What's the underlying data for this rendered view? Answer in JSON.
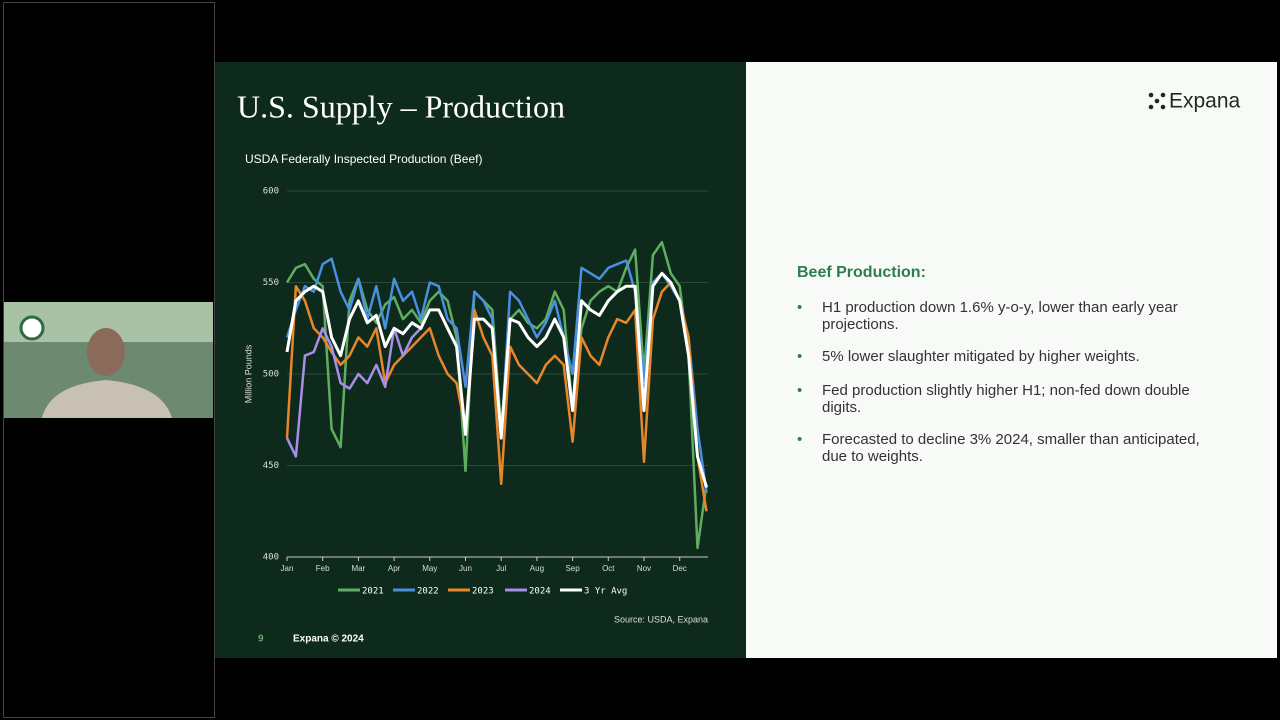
{
  "slide": {
    "title": "U.S. Supply – Production",
    "page_number": 9,
    "footer": "Expana © 2024",
    "logo": "Expana",
    "source": "Source: USDA, Expana"
  },
  "chart_data": {
    "type": "line",
    "title": "USDA Federally Inspected Production (Beef)",
    "y_label": "Million Pounds",
    "categories": [
      "Jan",
      null,
      null,
      null,
      "Feb",
      null,
      null,
      null,
      "Mar",
      null,
      null,
      null,
      "Apr",
      null,
      null,
      null,
      "May",
      null,
      null,
      null,
      "Jun",
      null,
      null,
      null,
      "Jul",
      null,
      null,
      null,
      "Aug",
      null,
      null,
      null,
      "Sep",
      null,
      null,
      null,
      "Oct",
      null,
      null,
      null,
      "Nov",
      null,
      null,
      null,
      "Dec",
      null,
      null,
      null
    ],
    "ylim": [
      400,
      600
    ],
    "yticks": [
      400,
      450,
      500,
      550,
      600
    ],
    "grid": true,
    "series": [
      {
        "name": "2021",
        "color": "#5fae5f",
        "values": [
          550,
          558,
          560,
          552,
          548,
          470,
          460,
          540,
          552,
          535,
          528,
          538,
          542,
          530,
          535,
          528,
          540,
          545,
          540,
          520,
          447,
          545,
          540,
          535,
          470,
          530,
          535,
          528,
          525,
          530,
          545,
          535,
          480,
          525,
          540,
          545,
          548,
          545,
          558,
          568,
          500,
          565,
          572,
          555,
          548,
          510,
          405,
          440
        ]
      },
      {
        "name": "2022",
        "color": "#4a8fe0",
        "values": [
          520,
          535,
          548,
          545,
          560,
          563,
          545,
          535,
          552,
          530,
          548,
          525,
          552,
          540,
          545,
          530,
          550,
          548,
          530,
          525,
          493,
          545,
          540,
          530,
          465,
          545,
          540,
          530,
          520,
          528,
          540,
          520,
          500,
          558,
          555,
          552,
          558,
          560,
          562,
          545,
          495,
          550,
          555,
          548,
          540,
          520,
          470,
          435
        ]
      },
      {
        "name": "2023",
        "color": "#e8872a",
        "values": [
          465,
          548,
          540,
          525,
          520,
          512,
          505,
          510,
          520,
          515,
          525,
          495,
          505,
          510,
          515,
          520,
          525,
          510,
          500,
          495,
          470,
          535,
          520,
          510,
          440,
          515,
          505,
          500,
          495,
          505,
          510,
          505,
          463,
          520,
          510,
          505,
          520,
          530,
          528,
          535,
          452,
          530,
          545,
          550,
          540,
          520,
          455,
          425
        ]
      },
      {
        "name": "2024",
        "color": "#a98ee8",
        "values": [
          465,
          455,
          510,
          512,
          525,
          515,
          495,
          492,
          500,
          495,
          505,
          493,
          525,
          510,
          520,
          525,
          null,
          null,
          null,
          null,
          null,
          null,
          null,
          null,
          null,
          null,
          null,
          null,
          null,
          null,
          null,
          null,
          null,
          null,
          null,
          null,
          null,
          null,
          null,
          null,
          null,
          null,
          null,
          null,
          null,
          null,
          null,
          null
        ]
      },
      {
        "name": "3 Yr Avg",
        "color": "#ffffff",
        "values": [
          512,
          540,
          545,
          548,
          545,
          520,
          510,
          530,
          540,
          528,
          532,
          515,
          525,
          522,
          528,
          525,
          535,
          535,
          525,
          515,
          467,
          530,
          530,
          525,
          465,
          530,
          528,
          520,
          515,
          520,
          530,
          520,
          480,
          540,
          535,
          532,
          540,
          545,
          548,
          548,
          480,
          548,
          555,
          550,
          540,
          510,
          455,
          438
        ]
      }
    ]
  },
  "panel": {
    "heading": "Beef Production:",
    "bullets": [
      "H1 production down 1.6% y-o-y, lower than early year projections.",
      "5% lower slaughter mitigated by higher weights.",
      "Fed production slightly higher H1; non-fed down double digits.",
      "Forecasted to decline 3% 2024, smaller than anticipated, due to weights."
    ]
  }
}
